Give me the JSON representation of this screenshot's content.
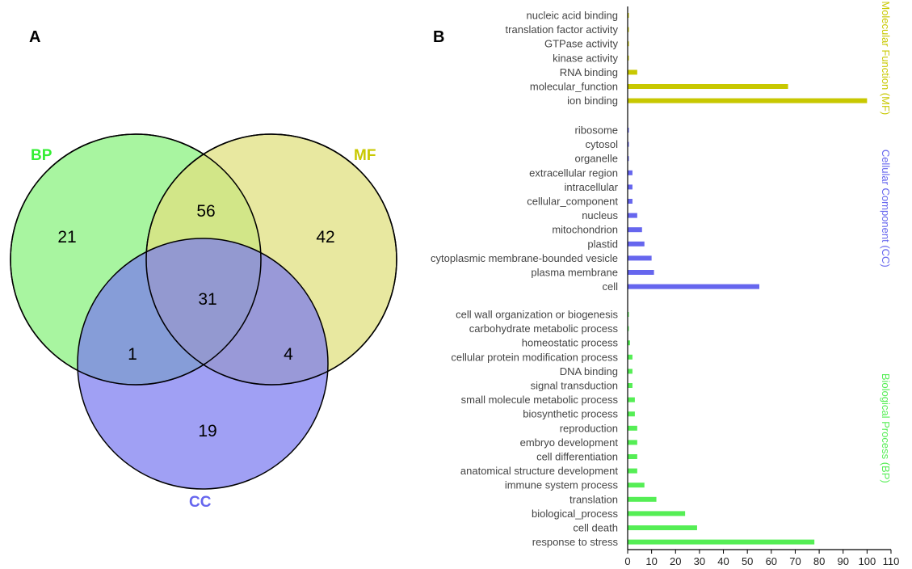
{
  "panel_a": {
    "label": "A",
    "sets": {
      "bp": {
        "name": "BP",
        "color": "#33ee33",
        "fill": "#a8f5a0"
      },
      "mf": {
        "name": "MF",
        "color": "#c8c800",
        "fill": "#e0e080"
      },
      "cc": {
        "name": "CC",
        "color": "#6666ee",
        "fill": "#7777f0"
      }
    },
    "counts": {
      "bp_only": "21",
      "mf_only": "42",
      "cc_only": "19",
      "bp_mf": "56",
      "bp_cc": "1",
      "mf_cc": "4",
      "all": "31"
    }
  },
  "panel_b": {
    "label": "B"
  },
  "chart_data": {
    "type": "bar",
    "orientation": "horizontal",
    "xlim": [
      0,
      110
    ],
    "xticks": [
      0,
      10,
      20,
      30,
      40,
      50,
      60,
      70,
      80,
      90,
      100,
      110
    ],
    "groups": [
      {
        "name": "Molecular Function (MF)",
        "color": "#c8c800",
        "categories": [
          "nucleic acid binding",
          "translation factor activity",
          "GTPase activity",
          "kinase activity",
          "RNA binding",
          "molecular_function",
          "ion binding"
        ],
        "values": [
          0.5,
          0.5,
          0.5,
          0.5,
          4,
          67,
          100
        ]
      },
      {
        "name": "Cellular Component (CC)",
        "color": "#6666ee",
        "categories": [
          "ribosome",
          "cytosol",
          "organelle",
          "extracellular region",
          "intracellular",
          "cellular_component",
          "nucleus",
          "mitochondrion",
          "plastid",
          "cytoplasmic membrane-bounded vesicle",
          "plasma membrane",
          "cell"
        ],
        "values": [
          0.5,
          0.5,
          0.5,
          2,
          2,
          2,
          4,
          6,
          7,
          10,
          11,
          55
        ]
      },
      {
        "name": "Biological Process (BP)",
        "color": "#55ee55",
        "categories": [
          "cell wall organization or biogenesis",
          "carbohydrate metabolic process",
          "homeostatic process",
          "cellular protein modification process",
          "DNA binding",
          "signal transduction",
          "small molecule metabolic process",
          "biosynthetic process",
          "reproduction",
          "embryo development",
          "cell differentiation",
          "anatomical structure development",
          "immune system process",
          "translation",
          "biological_process",
          "cell death",
          "response to stress"
        ],
        "values": [
          0.5,
          0.5,
          1,
          2,
          2,
          2,
          3,
          3,
          4,
          4,
          4,
          4,
          7,
          12,
          24,
          29,
          78
        ]
      }
    ]
  }
}
